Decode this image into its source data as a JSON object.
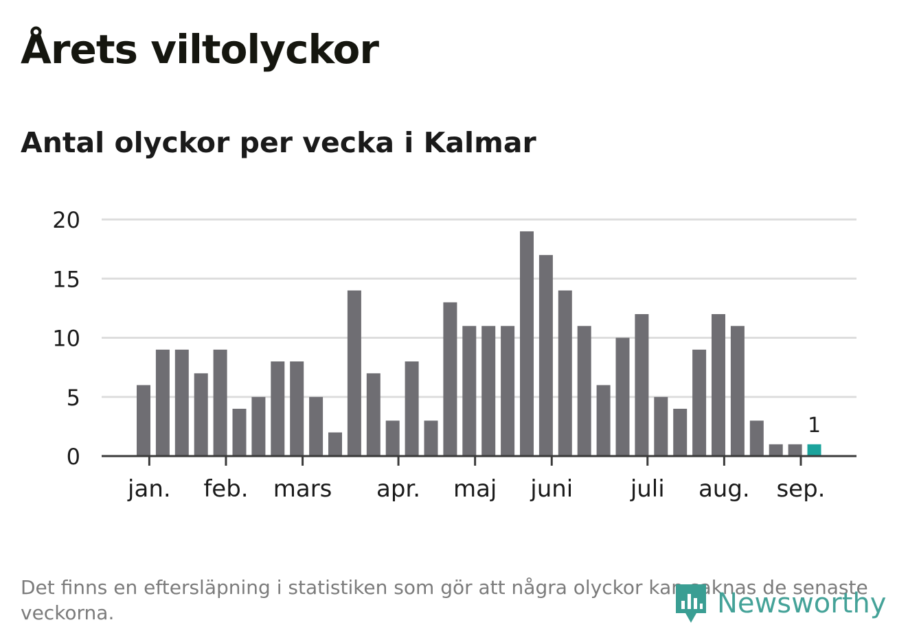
{
  "title": "Årets viltolyckor",
  "subtitle": "Antal olyckor per vecka i Kalmar",
  "footnote": "Det finns en eftersläpning i statistiken som gör att några olyckor kan saknas de senaste veckorna.",
  "brand": "Newsworthy",
  "colors": {
    "bar": "#6f6e73",
    "highlight": "#1ba39c",
    "grid": "#dddddd",
    "axis": "#3a3a3a",
    "text": "#1a1a1a",
    "brand": "#3a9e93"
  },
  "chart_data": {
    "type": "bar",
    "values": [
      6,
      9,
      9,
      7,
      9,
      4,
      5,
      8,
      8,
      5,
      2,
      14,
      7,
      3,
      8,
      3,
      13,
      11,
      11,
      11,
      19,
      17,
      14,
      11,
      6,
      10,
      12,
      5,
      4,
      9,
      12,
      11,
      3,
      1,
      1,
      1
    ],
    "highlight_index": 35,
    "highlight_label": "1",
    "ylim": [
      0,
      20
    ],
    "yticks": [
      0,
      5,
      10,
      15,
      20
    ],
    "month_ticks": [
      {
        "label": "jan.",
        "pos": 0.3
      },
      {
        "label": "feb.",
        "pos": 4.3
      },
      {
        "label": "mars",
        "pos": 8.3
      },
      {
        "label": "apr.",
        "pos": 13.3
      },
      {
        "label": "maj",
        "pos": 17.3
      },
      {
        "label": "juni",
        "pos": 21.3
      },
      {
        "label": "juli",
        "pos": 26.3
      },
      {
        "label": "aug.",
        "pos": 30.3
      },
      {
        "label": "sep.",
        "pos": 34.3
      }
    ],
    "grid": true
  }
}
